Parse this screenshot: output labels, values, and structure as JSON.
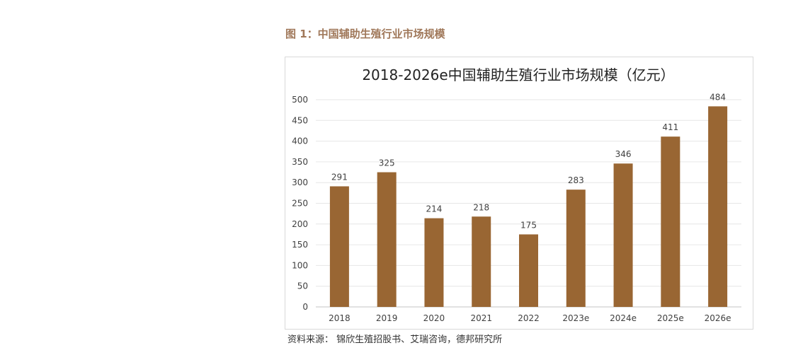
{
  "figure_caption": "图 1：中国辅助生殖行业市场规模",
  "source": "资料来源：  锦欣生殖招股书、艾瑞咨询，德邦研究所",
  "colors": {
    "bar": "#996633",
    "caption": "#a0785a",
    "grid": "#d9d9d9"
  },
  "chart_data": {
    "type": "bar",
    "title": "2018-2026e中国辅助生殖行业市场规模（亿元）",
    "categories": [
      "2018",
      "2019",
      "2020",
      "2021",
      "2022",
      "2023e",
      "2024e",
      "2025e",
      "2026e"
    ],
    "values": [
      291,
      325,
      214,
      218,
      175,
      283,
      346,
      411,
      484
    ],
    "xlabel": "",
    "ylabel": "",
    "ylim": [
      0,
      500
    ],
    "yticks": [
      0,
      50,
      100,
      150,
      200,
      250,
      300,
      350,
      400,
      450,
      500
    ],
    "grid": true,
    "legend": "none"
  }
}
